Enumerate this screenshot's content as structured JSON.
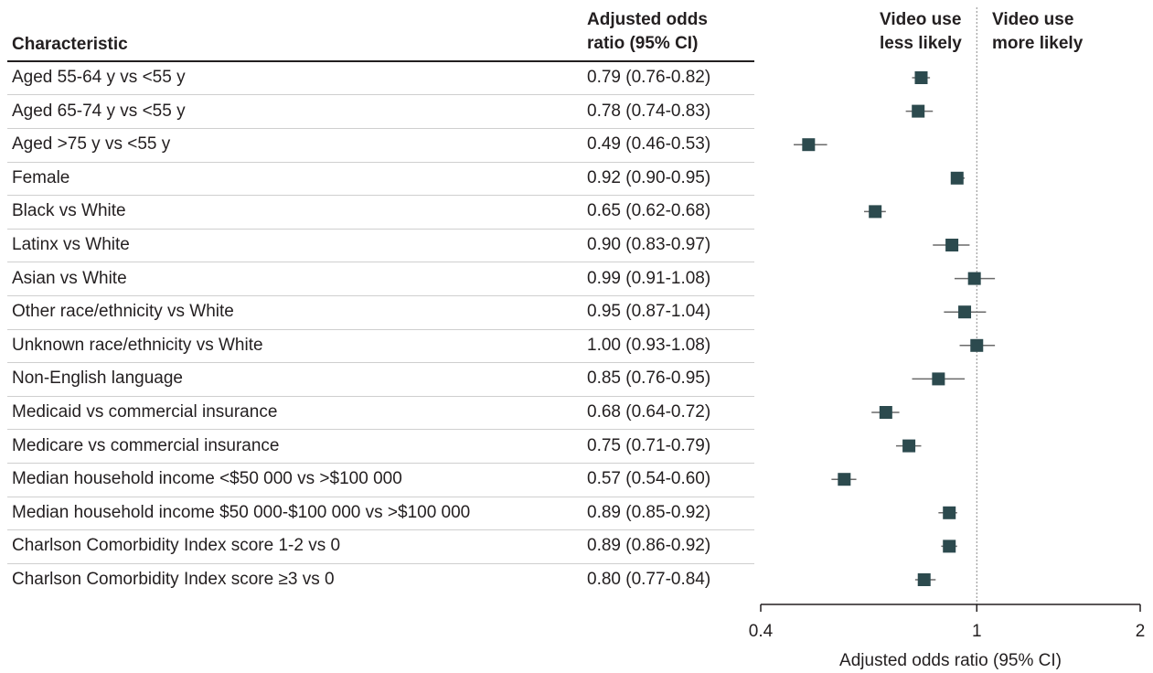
{
  "header": {
    "characteristic": "Characteristic",
    "or_line1": "Adjusted odds",
    "or_line2": "ratio (95% CI)",
    "less_line1": "Video use",
    "less_line2": "less likely",
    "more_line1": "Video use",
    "more_line2": "more likely"
  },
  "chart_data": {
    "type": "forest",
    "x_scale": "log",
    "xlim": [
      0.4,
      2
    ],
    "reference_line": 1,
    "xticks": [
      0.4,
      1,
      2
    ],
    "xtick_labels": [
      "0.4",
      "1",
      "2"
    ],
    "xlabel": "Adjusted odds ratio (95% CI)",
    "marker_color": "#2c4a4e",
    "rows": [
      {
        "label": "Aged 55-64 y vs <55 y",
        "value": "0.79 (0.76-0.82)",
        "or": 0.79,
        "lo": 0.76,
        "hi": 0.82
      },
      {
        "label": "Aged 65-74 y vs <55 y",
        "value": "0.78 (0.74-0.83)",
        "or": 0.78,
        "lo": 0.74,
        "hi": 0.83
      },
      {
        "label": "Aged >75 y vs <55 y",
        "value": "0.49 (0.46-0.53)",
        "or": 0.49,
        "lo": 0.46,
        "hi": 0.53
      },
      {
        "label": "Female",
        "value": "0.92 (0.90-0.95)",
        "or": 0.92,
        "lo": 0.9,
        "hi": 0.95
      },
      {
        "label": "Black vs White",
        "value": "0.65 (0.62-0.68)",
        "or": 0.65,
        "lo": 0.62,
        "hi": 0.68
      },
      {
        "label": "Latinx vs White",
        "value": "0.90 (0.83-0.97)",
        "or": 0.9,
        "lo": 0.83,
        "hi": 0.97
      },
      {
        "label": "Asian vs White",
        "value": "0.99 (0.91-1.08)",
        "or": 0.99,
        "lo": 0.91,
        "hi": 1.08
      },
      {
        "label": "Other race/ethnicity vs White",
        "value": "0.95 (0.87-1.04)",
        "or": 0.95,
        "lo": 0.87,
        "hi": 1.04
      },
      {
        "label": "Unknown race/ethnicity vs White",
        "value": "1.00 (0.93-1.08)",
        "or": 1.0,
        "lo": 0.93,
        "hi": 1.08
      },
      {
        "label": "Non-English language",
        "value": "0.85 (0.76-0.95)",
        "or": 0.85,
        "lo": 0.76,
        "hi": 0.95
      },
      {
        "label": "Medicaid vs commercial insurance",
        "value": "0.68 (0.64-0.72)",
        "or": 0.68,
        "lo": 0.64,
        "hi": 0.72
      },
      {
        "label": "Medicare vs commercial insurance",
        "value": "0.75 (0.71-0.79)",
        "or": 0.75,
        "lo": 0.71,
        "hi": 0.79
      },
      {
        "label": "Median household income <$50 000 vs >$100 000",
        "value": "0.57 (0.54-0.60)",
        "or": 0.57,
        "lo": 0.54,
        "hi": 0.6
      },
      {
        "label": "Median household income $50 000-$100 000 vs >$100 000",
        "value": "0.89 (0.85-0.92)",
        "or": 0.89,
        "lo": 0.85,
        "hi": 0.92
      },
      {
        "label": "Charlson Comorbidity Index score 1-2 vs 0",
        "value": "0.89 (0.86-0.92)",
        "or": 0.89,
        "lo": 0.86,
        "hi": 0.92
      },
      {
        "label": "Charlson Comorbidity Index score ≥3 vs 0",
        "value": "0.80 (0.77-0.84)",
        "or": 0.8,
        "lo": 0.77,
        "hi": 0.84
      }
    ]
  }
}
